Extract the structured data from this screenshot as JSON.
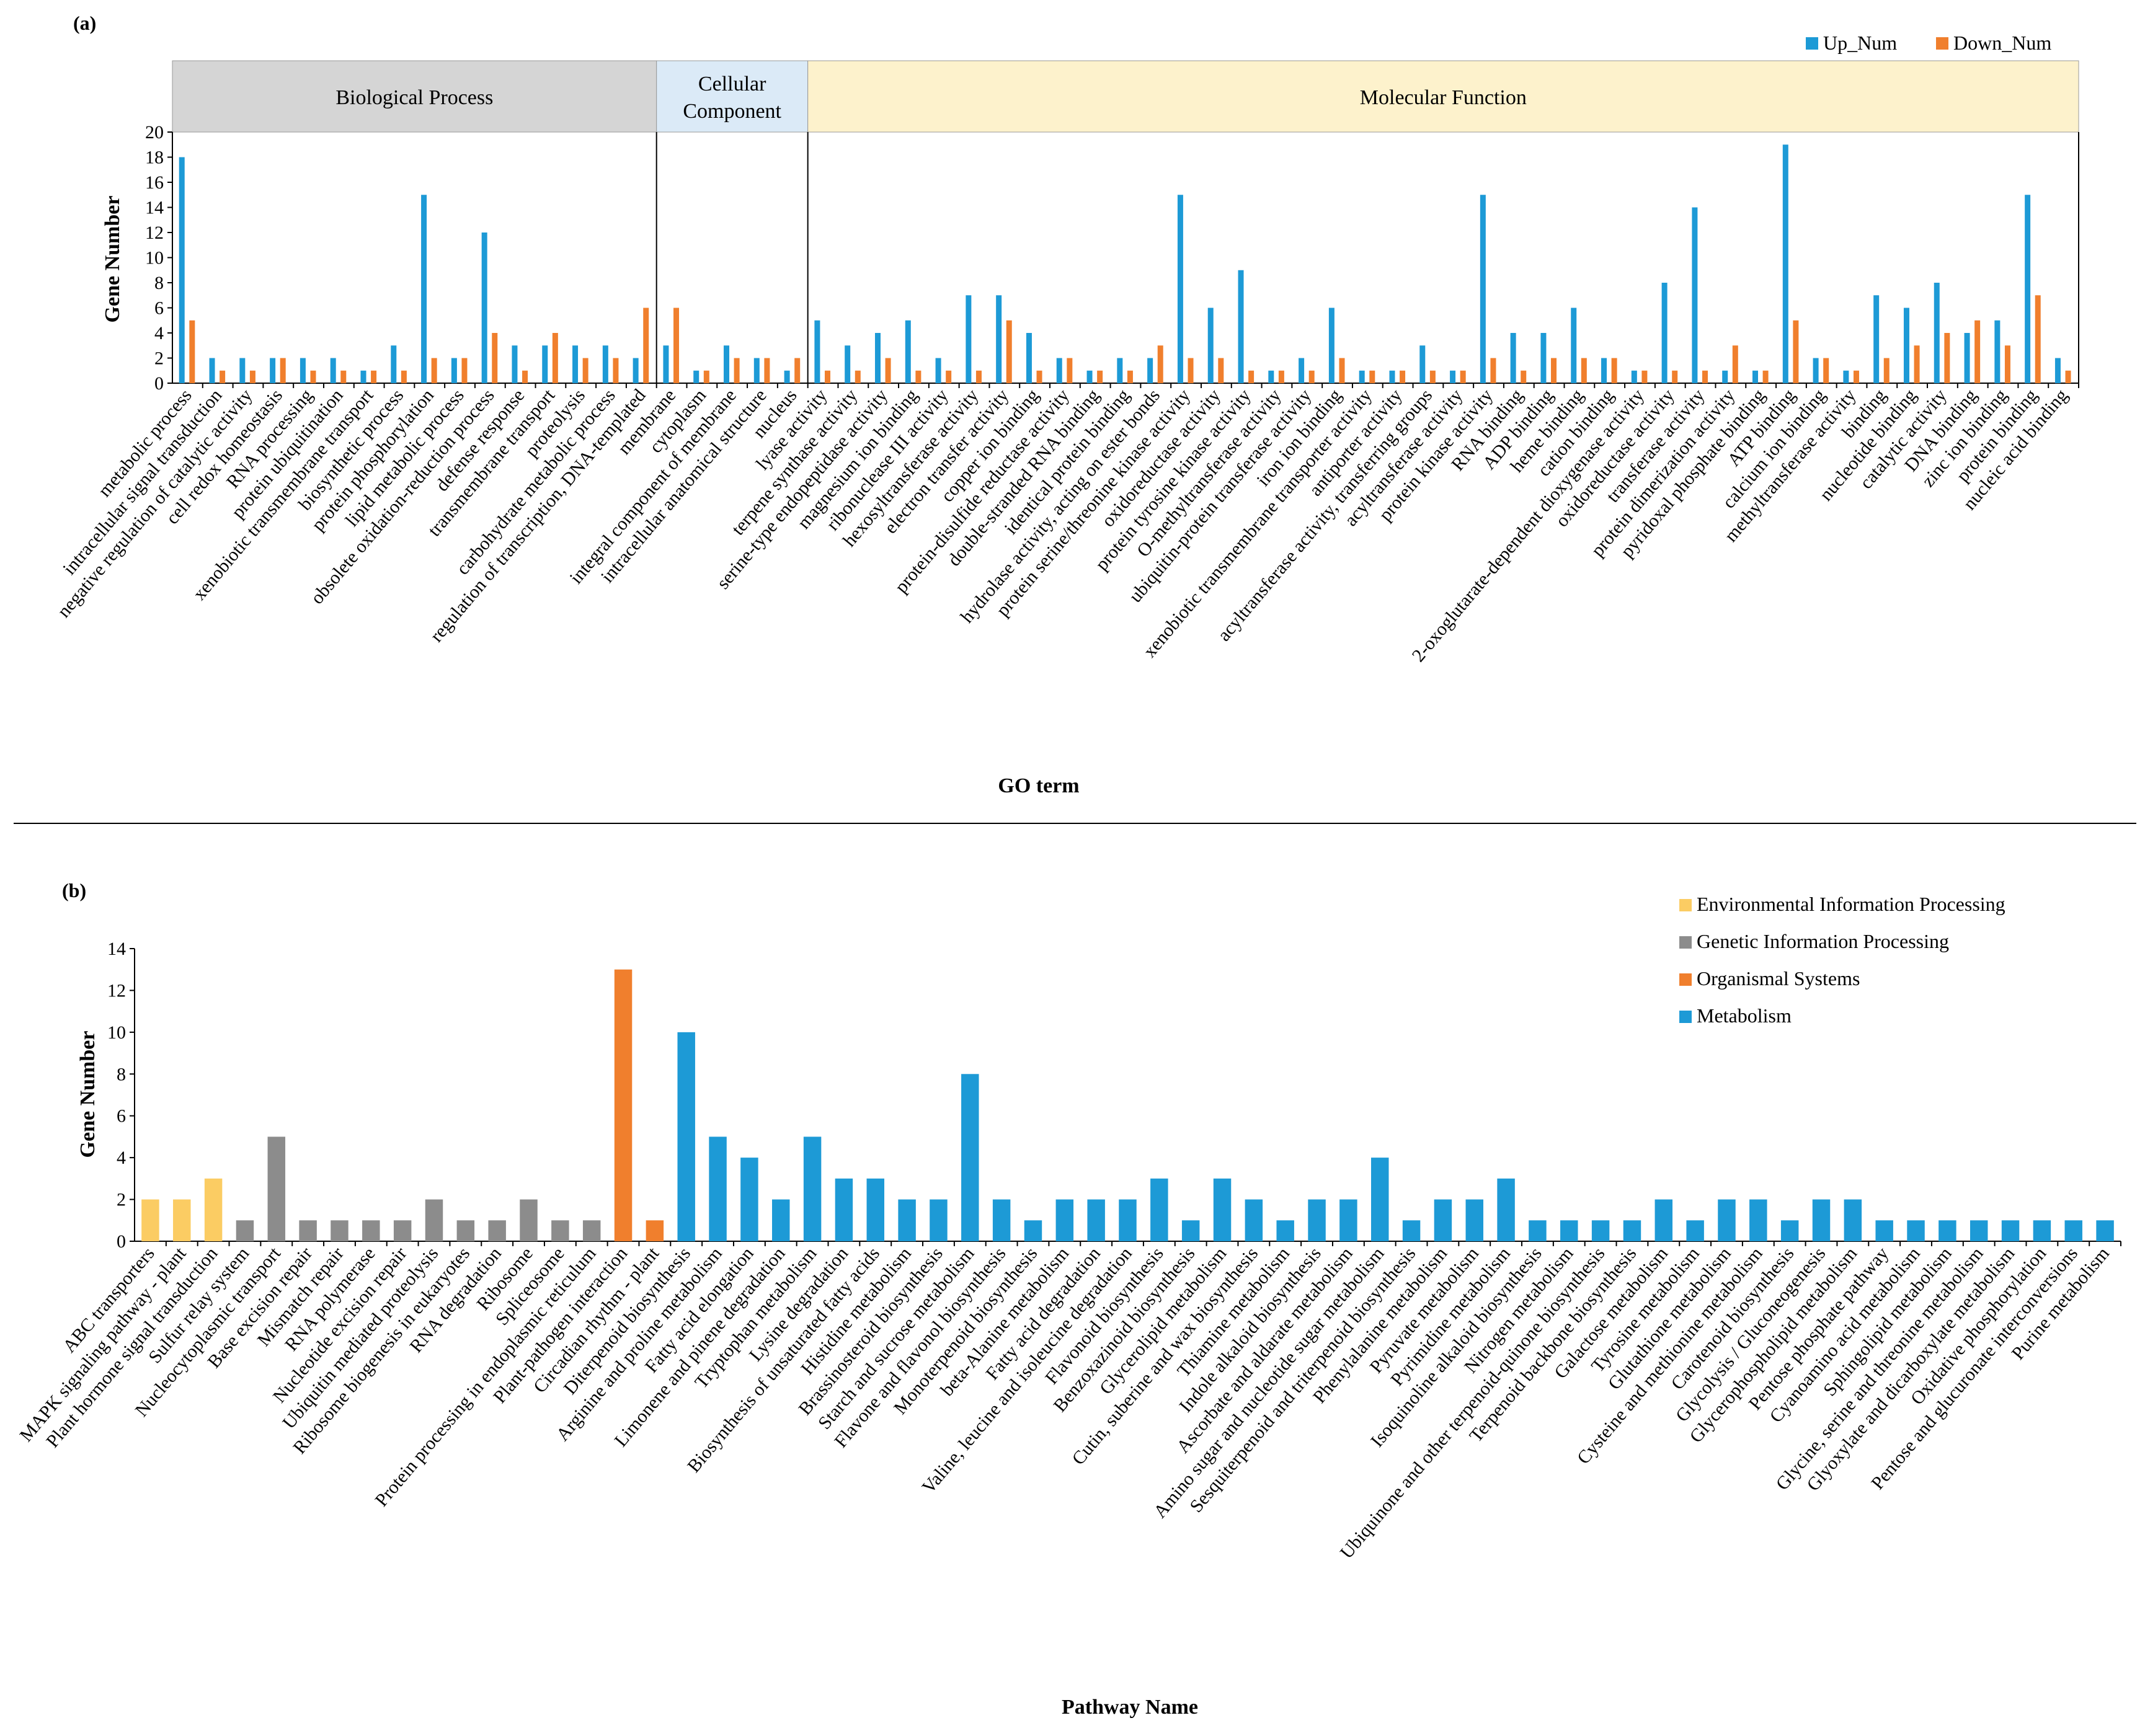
{
  "colors": {
    "up": "#1d9ad6",
    "down": "#f07f2d",
    "env": "#fbcc63",
    "gen": "#8c8c8c",
    "org": "#f07f2d",
    "met": "#1d9ad6",
    "band_bp": "#d5d5d5",
    "band_cc": "#dbeaf7",
    "band_mf": "#fdf2cc"
  },
  "chart_data": [
    {
      "type": "bar",
      "panel_label": "(a)",
      "xlabel": "GO term",
      "ylabel": "Gene Number",
      "ylim": [
        0,
        20
      ],
      "yticks": [
        0,
        2,
        4,
        6,
        8,
        10,
        12,
        14,
        16,
        18,
        20
      ],
      "legend": [
        "Up_Num",
        "Down_Num"
      ],
      "groups": [
        {
          "name": "Biological Process",
          "count": 16
        },
        {
          "name": "Cellular Component",
          "count": 5
        },
        {
          "name": "Molecular Function",
          "count": 42
        }
      ],
      "categories": [
        "metabolic process",
        "intracellular signal transduction",
        "negative regulation of catalytic activity",
        "cell redox homeostasis",
        "RNA processing",
        "protein ubiquitination",
        "xenobiotic transmembrane transport",
        "biosynthetic process",
        "protein phosphorylation",
        "lipid metabolic process",
        "obsolete oxidation-reduction process",
        "defense response",
        "transmembrane transport",
        "proteolysis",
        "carbohydrate metabolic process",
        "regulation of transcription, DNA-templated",
        "membrane",
        "cytoplasm",
        "integral component of membrane",
        "intracellular anatomical structure",
        "nucleus",
        "lyase activity",
        "terpene synthase activity",
        "serine-type endopeptidase activity",
        "magnesium ion binding",
        "ribonuclease III activity",
        "hexosyltransferase activity",
        "electron transfer activity",
        "copper ion binding",
        "protein-disulfide reductase activity",
        "double-stranded RNA binding",
        "identical protein binding",
        "hydrolase activity, acting on ester bonds",
        "protein serine/threonine kinase activity",
        "oxidoreductase activity",
        "protein tyrosine kinase activity",
        "O-methyltransferase activity",
        "ubiquitin-protein transferase activity",
        "iron ion binding",
        "xenobiotic transmembrane transporter activity",
        "antiporter activity",
        "acyltransferase activity, transferring groups",
        "acyltransferase activity",
        "protein kinase activity",
        "RNA binding",
        "ADP binding",
        "heme binding",
        "cation binding",
        "2-oxoglutarate-dependent dioxygenase activity",
        "oxidoreductase activity",
        "transferase activity",
        "protein dimerization activity",
        "pyridoxal phosphate binding",
        "ATP binding",
        "calcium ion binding",
        "methyltransferase activity",
        "binding",
        "nucleotide binding",
        "catalytic activity",
        "DNA binding",
        "zinc ion binding",
        "protein binding",
        "nucleic acid binding"
      ],
      "series": [
        {
          "name": "Up_Num",
          "values": [
            18,
            2,
            2,
            2,
            2,
            2,
            1,
            3,
            15,
            2,
            12,
            3,
            3,
            3,
            3,
            2,
            3,
            1,
            3,
            2,
            1,
            5,
            3,
            4,
            5,
            2,
            7,
            7,
            4,
            2,
            1,
            2,
            2,
            15,
            6,
            9,
            1,
            2,
            6,
            1,
            1,
            3,
            1,
            15,
            4,
            4,
            6,
            2,
            1,
            8,
            14,
            1,
            1,
            19,
            2,
            1,
            7,
            6,
            8,
            4,
            5,
            15,
            2
          ]
        },
        {
          "name": "Down_Num",
          "values": [
            5,
            1,
            1,
            2,
            1,
            1,
            1,
            1,
            2,
            2,
            4,
            1,
            4,
            2,
            2,
            6,
            6,
            1,
            2,
            2,
            2,
            1,
            1,
            2,
            1,
            1,
            1,
            5,
            1,
            2,
            1,
            1,
            3,
            2,
            2,
            1,
            1,
            1,
            2,
            1,
            1,
            1,
            1,
            2,
            1,
            2,
            2,
            2,
            1,
            1,
            1,
            3,
            1,
            5,
            2,
            1,
            2,
            3,
            4,
            5,
            3,
            7,
            1
          ]
        }
      ]
    },
    {
      "type": "bar",
      "panel_label": "(b)",
      "xlabel": "Pathway Name",
      "ylabel": "Gene Number",
      "ylim": [
        0,
        14
      ],
      "yticks": [
        0,
        2,
        4,
        6,
        8,
        10,
        12,
        14
      ],
      "legend": [
        {
          "name": "Environmental Information Processing",
          "key": "env"
        },
        {
          "name": "Genetic Information Processing",
          "key": "gen"
        },
        {
          "name": "Organismal Systems",
          "key": "org"
        },
        {
          "name": "Metabolism",
          "key": "met"
        }
      ],
      "categories": [
        "ABC transporters",
        "MAPK signaling pathway - plant",
        "Plant hormone signal transduction",
        "Sulfur relay system",
        "Nucleocytoplasmic transport",
        "Base excision repair",
        "Mismatch repair",
        "RNA polymerase",
        "Nucleotide excision repair",
        "Ubiquitin mediated proteolysis",
        "Ribosome biogenesis in eukaryotes",
        "RNA degradation",
        "Ribosome",
        "Spliceosome",
        "Protein processing in endoplasmic reticulum",
        "Plant-pathogen interaction",
        "Circadian rhythm - plant",
        "Diterpenoid biosynthesis",
        "Arginine and proline metabolism",
        "Fatty acid elongation",
        "Limonene and pinene degradation",
        "Tryptophan metabolism",
        "Lysine degradation",
        "Biosynthesis of unsaturated fatty acids",
        "Histidine metabolism",
        "Brassinosteroid biosynthesis",
        "Starch and sucrose metabolism",
        "Flavone and flavonol biosynthesis",
        "Monoterpenoid biosynthesis",
        "beta-Alanine metabolism",
        "Fatty acid degradation",
        "Valine, leucine and isoleucine degradation",
        "Flavonoid biosynthesis",
        "Benzoxazinoid biosynthesis",
        "Glycerolipid metabolism",
        "Cutin, suberine and wax biosynthesis",
        "Thiamine metabolism",
        "Indole alkaloid biosynthesis",
        "Ascorbate and aldarate metabolism",
        "Amino sugar and nucleotide sugar metabolism",
        "Sesquiterpenoid and triterpenoid biosynthesis",
        "Phenylalanine metabolism",
        "Pyruvate metabolism",
        "Pyrimidine metabolism",
        "Isoquinoline alkaloid biosynthesis",
        "Nitrogen metabolism",
        "Ubiquinone and other terpenoid-quinone biosynthesis",
        "Terpenoid backbone biosynthesis",
        "Galactose metabolism",
        "Tyrosine metabolism",
        "Glutathione metabolism",
        "Cysteine and methionine metabolism",
        "Carotenoid biosynthesis",
        "Glycolysis / Gluconeogenesis",
        "Glycerophospholipid metabolism",
        "Pentose phosphate pathway",
        "Cyanoamino acid metabolism",
        "Sphingolipid metabolism",
        "Glycine, serine and threonine metabolism",
        "Glyoxylate and dicarboxylate metabolism",
        "Oxidative phosphorylation",
        "Pentose and glucuronate interconversions",
        "Purine metabolism"
      ],
      "values": [
        2,
        2,
        3,
        1,
        5,
        1,
        1,
        1,
        1,
        2,
        1,
        1,
        2,
        1,
        1,
        13,
        1,
        10,
        5,
        4,
        2,
        5,
        3,
        3,
        2,
        2,
        8,
        2,
        1,
        2,
        2,
        2,
        3,
        1,
        3,
        2,
        1,
        2,
        2,
        4,
        1,
        2,
        2,
        3,
        1,
        1,
        1,
        1,
        2,
        1,
        2,
        2,
        1,
        2,
        2,
        1,
        1,
        1,
        1,
        1,
        1,
        1,
        1
      ],
      "class_keys": [
        "env",
        "env",
        "env",
        "gen",
        "gen",
        "gen",
        "gen",
        "gen",
        "gen",
        "gen",
        "gen",
        "gen",
        "gen",
        "gen",
        "gen",
        "org",
        "org",
        "met",
        "met",
        "met",
        "met",
        "met",
        "met",
        "met",
        "met",
        "met",
        "met",
        "met",
        "met",
        "met",
        "met",
        "met",
        "met",
        "met",
        "met",
        "met",
        "met",
        "met",
        "met",
        "met",
        "met",
        "met",
        "met",
        "met",
        "met",
        "met",
        "met",
        "met",
        "met",
        "met",
        "met",
        "met",
        "met",
        "met",
        "met",
        "met",
        "met",
        "met",
        "met",
        "met",
        "met",
        "met",
        "met"
      ]
    }
  ]
}
